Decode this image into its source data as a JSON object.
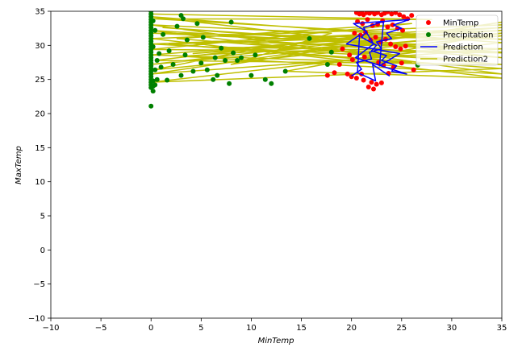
{
  "chart_data": {
    "type": "scatter",
    "title": "",
    "xlabel": "MinTemp",
    "ylabel": "MaxTemp",
    "xlim": [
      -10,
      35
    ],
    "ylim": [
      -10,
      35
    ],
    "xticks": [
      "−10",
      "−5",
      "0",
      "5",
      "10",
      "15",
      "20",
      "25",
      "30",
      "35"
    ],
    "yticks": [
      "−10",
      "−5",
      "0",
      "5",
      "10",
      "15",
      "20",
      "25",
      "30",
      "35"
    ],
    "grid": false,
    "legend_position": "upper-right",
    "legend": [
      {
        "label": "MinTemp",
        "kind": "marker",
        "color": "#ff0000"
      },
      {
        "label": "Precipitation",
        "kind": "marker",
        "color": "#008000"
      },
      {
        "label": "Prediction",
        "kind": "line",
        "color": "#0000ff"
      },
      {
        "label": "Prediction2",
        "kind": "line",
        "color": "#bfbf00"
      }
    ],
    "series": [
      {
        "name": "MinTemp",
        "kind": "scatter",
        "color": "#ff0000",
        "x": [
          20.5,
          20.8,
          21.0,
          21.2,
          21.5,
          21.8,
          22.0,
          22.3,
          22.6,
          23.0,
          23.3,
          23.6,
          24.0,
          24.4,
          24.8,
          25.2,
          25.6,
          26.0,
          20.6,
          21.1,
          21.6,
          22.1,
          22.6,
          23.1,
          23.6,
          24.1,
          24.6,
          25.1,
          20.3,
          20.9,
          21.4,
          21.9,
          22.4,
          22.9,
          23.4,
          23.9,
          24.4,
          24.9,
          25.4,
          19.8,
          20.1,
          21.3,
          22.7,
          23.2,
          24.2,
          25.0,
          26.2,
          21.0,
          20.5,
          21.2,
          22.0,
          22.5,
          23.0,
          21.7,
          19.6,
          20.0,
          18.8,
          17.6,
          18.3,
          19.1,
          22.2,
          23.7
        ],
        "y": [
          34.8,
          34.6,
          34.9,
          34.5,
          34.8,
          34.7,
          34.9,
          34.6,
          34.8,
          34.5,
          34.7,
          34.9,
          34.6,
          34.8,
          34.5,
          34.2,
          33.9,
          34.4,
          33.5,
          33.2,
          33.8,
          32.9,
          33.1,
          33.6,
          32.7,
          33.0,
          32.5,
          32.2,
          31.8,
          31.5,
          31.9,
          30.8,
          31.2,
          30.5,
          30.9,
          30.2,
          29.8,
          29.5,
          29.9,
          28.6,
          27.9,
          28.3,
          27.5,
          27.1,
          26.8,
          27.4,
          26.4,
          25.8,
          25.2,
          24.9,
          24.6,
          24.3,
          24.5,
          23.9,
          25.8,
          25.4,
          27.2,
          25.6,
          26.0,
          29.5,
          23.6,
          25.9
        ]
      },
      {
        "name": "Precipitation",
        "kind": "scatter",
        "color": "#008000",
        "x": [
          0,
          0,
          0,
          0,
          0,
          0,
          0,
          0,
          0,
          0,
          0,
          0,
          0,
          0,
          0,
          0,
          0,
          0,
          0,
          0,
          0,
          0,
          0,
          0,
          0,
          0,
          0,
          0,
          0,
          0,
          0.2,
          0.2,
          0.2,
          0.2,
          0.2,
          0.4,
          0.4,
          0.4,
          0.6,
          0.6,
          0.8,
          1.0,
          1.2,
          1.6,
          1.8,
          2.2,
          2.6,
          3.0,
          3.0,
          3.2,
          3.4,
          3.6,
          4.2,
          4.6,
          5.0,
          5.2,
          5.6,
          6.2,
          6.4,
          6.6,
          7.0,
          7.4,
          7.8,
          8.0,
          8.2,
          8.6,
          9.0,
          10.0,
          10.4,
          11.4,
          12.0,
          13.4,
          15.8,
          17.6,
          18.0,
          26.6
        ],
        "y": [
          35.0,
          34.6,
          34.2,
          33.8,
          33.4,
          33.0,
          32.6,
          32.2,
          31.8,
          31.4,
          31.0,
          30.6,
          30.2,
          29.8,
          29.4,
          29.0,
          28.6,
          28.2,
          27.8,
          27.4,
          27.0,
          26.6,
          26.2,
          25.8,
          25.4,
          25.0,
          24.6,
          24.2,
          23.8,
          21.1,
          23.3,
          24.0,
          24.8,
          29.8,
          33.6,
          24.2,
          26.4,
          32.2,
          25.0,
          27.8,
          28.8,
          26.8,
          31.6,
          24.9,
          29.2,
          27.2,
          32.8,
          25.6,
          34.4,
          33.9,
          28.6,
          30.8,
          26.2,
          33.2,
          27.4,
          31.2,
          26.4,
          25.0,
          28.2,
          25.6,
          29.6,
          27.8,
          24.4,
          33.4,
          28.9,
          27.8,
          28.2,
          25.6,
          28.6,
          25.0,
          24.4,
          26.2,
          31.0,
          27.2,
          29.0,
          27.1
        ]
      },
      {
        "name": "Prediction",
        "kind": "line",
        "color": "#0000ff",
        "x": [
          20.0,
          21.0,
          20.5,
          22.0,
          21.8,
          23.0,
          22.5,
          24.0,
          23.5,
          25.0,
          24.2,
          25.8,
          20.2,
          21.5,
          21.0,
          22.5,
          22.0,
          23.5,
          23.0,
          24.5,
          24.0,
          25.5,
          20.4,
          22.2,
          21.2,
          23.2,
          22.8,
          24.8,
          19.5,
          20.8,
          20.6,
          22.4,
          22.1,
          23.8
        ],
        "y": [
          25.5,
          26.5,
          27.5,
          28.0,
          29.0,
          29.5,
          30.5,
          31.0,
          31.8,
          32.5,
          33.0,
          33.8,
          33.2,
          32.0,
          31.2,
          30.0,
          29.2,
          28.5,
          27.8,
          27.0,
          26.2,
          25.8,
          28.2,
          30.2,
          32.6,
          33.5,
          27.0,
          28.8,
          30.2,
          31.5,
          26.0,
          24.8,
          27.2,
          25.5
        ]
      },
      {
        "name": "Prediction2",
        "kind": "line",
        "color": "#bfbf00",
        "x": [
          0.0,
          28.0,
          0.2,
          35.0,
          0.0,
          30.0,
          1.2,
          35.0,
          0.0,
          26.0,
          2.6,
          35.0,
          0.4,
          22.0,
          4.2,
          35.0,
          0.0,
          32.0,
          6.2,
          35.0,
          0.0,
          35.0,
          8.0,
          18.0,
          0.0,
          35.0,
          3.0,
          35.0,
          0.2,
          12.0,
          0.0,
          35.0,
          5.0,
          26.0,
          0.0,
          35.0,
          10.0,
          35.0,
          0.0,
          35.0,
          0.0,
          35.0,
          1.8,
          24.0,
          0.0,
          35.0,
          13.4,
          35.0,
          0.0,
          35.0
        ],
        "y": [
          34.6,
          33.8,
          33.9,
          30.9,
          31.8,
          29.8,
          32.6,
          28.9,
          29.4,
          33.2,
          31.0,
          27.2,
          27.8,
          31.5,
          28.8,
          32.2,
          30.2,
          27.8,
          30.6,
          29.5,
          25.8,
          33.4,
          27.2,
          31.8,
          33.0,
          25.8,
          28.4,
          31.4,
          26.4,
          30.0,
          32.2,
          29.0,
          29.8,
          27.4,
          28.6,
          32.6,
          30.8,
          28.2,
          34.2,
          30.4,
          24.6,
          26.6,
          30.2,
          31.2,
          27.2,
          31.8,
          26.2,
          25.2,
          31.0,
          33.0
        ]
      }
    ]
  }
}
